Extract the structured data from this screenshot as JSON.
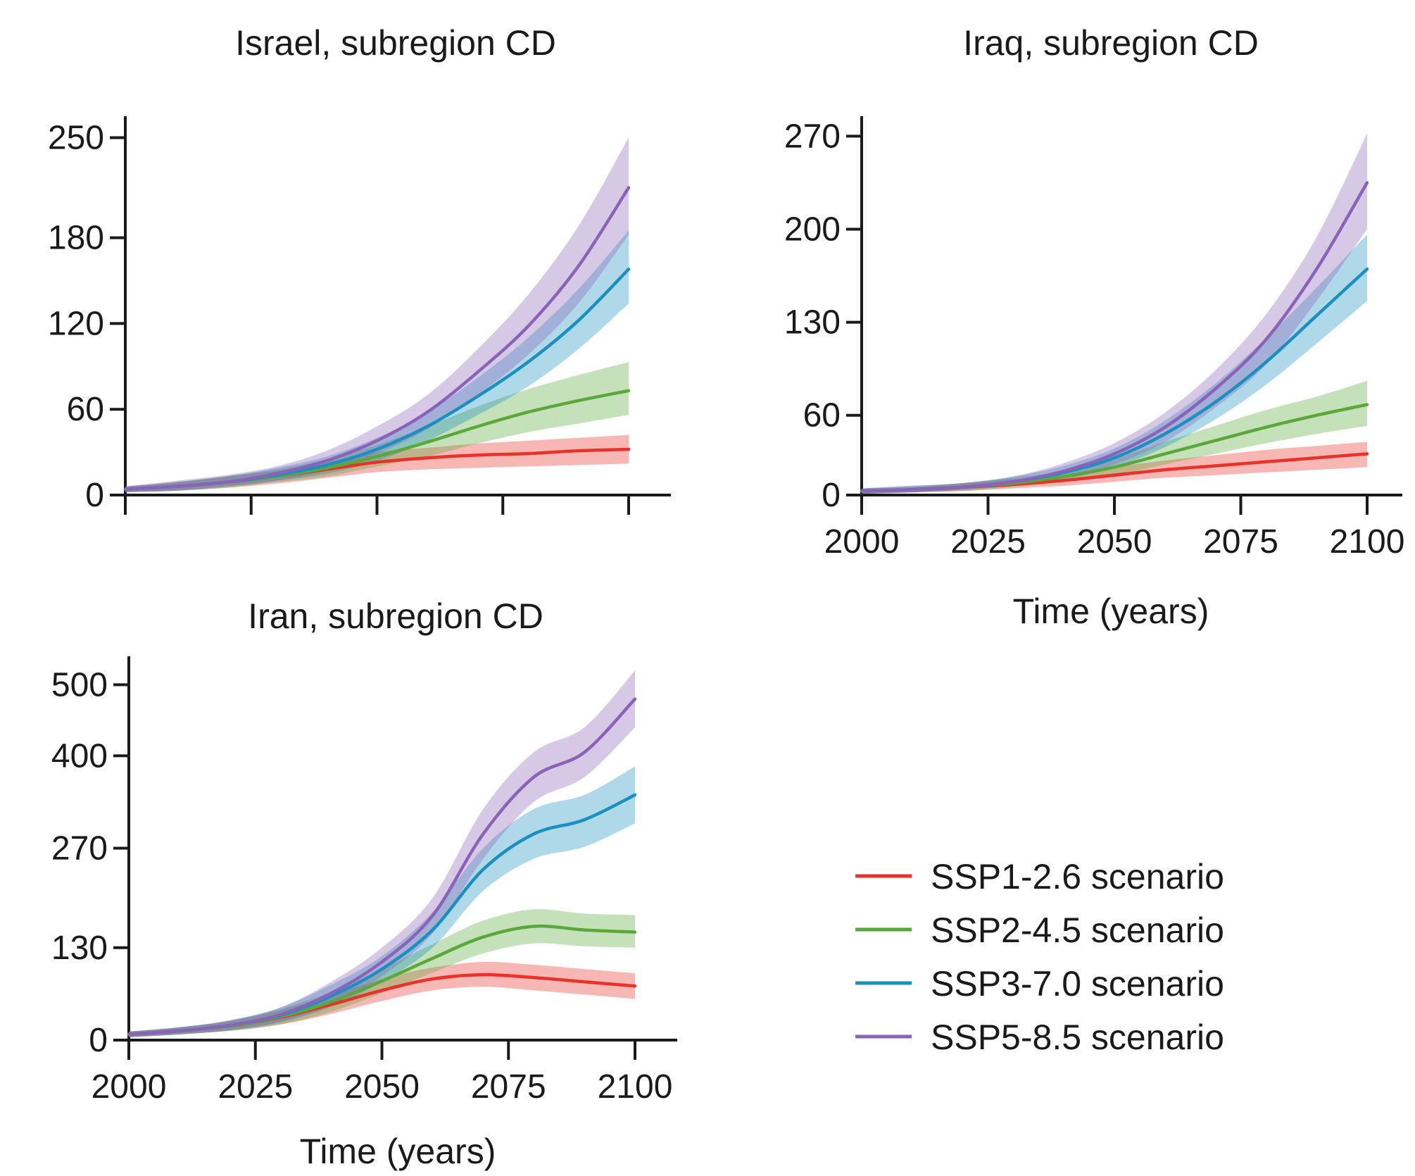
{
  "chart_data": [
    {
      "type": "line",
      "title": "Israel, subregion CD",
      "xlabel": "",
      "ylabel": "",
      "xlim": [
        2000,
        2100
      ],
      "ylim": [
        0,
        265
      ],
      "yticks": [
        "0",
        "60",
        "120",
        "180",
        "250"
      ],
      "xticks": [
        "",
        "",
        "",
        "",
        ""
      ],
      "x": [
        2000,
        2010,
        2020,
        2030,
        2040,
        2050,
        2060,
        2070,
        2080,
        2090,
        2100
      ],
      "series": [
        {
          "name": "SSP1-2.6 scenario",
          "color": "#e8332a",
          "values": [
            4,
            6,
            9,
            13,
            18,
            23,
            26,
            28,
            29,
            31,
            32
          ],
          "lower": [
            2,
            3,
            5,
            8,
            12,
            16,
            18,
            19,
            20,
            21,
            22
          ],
          "upper": [
            6,
            9,
            13,
            17,
            23,
            30,
            33,
            36,
            38,
            40,
            42
          ]
        },
        {
          "name": "SSP2-4.5 scenario",
          "color": "#5aa83a",
          "values": [
            4,
            6,
            9,
            13,
            19,
            27,
            37,
            48,
            58,
            66,
            73
          ],
          "lower": [
            2,
            3,
            5,
            9,
            13,
            20,
            27,
            36,
            44,
            50,
            56
          ],
          "upper": [
            6,
            9,
            13,
            18,
            25,
            35,
            48,
            62,
            74,
            84,
            93
          ]
        },
        {
          "name": "SSP3-7.0 scenario",
          "color": "#1b8fc0",
          "values": [
            4,
            6,
            9,
            14,
            21,
            32,
            48,
            69,
            93,
            122,
            158
          ],
          "lower": [
            2,
            3,
            6,
            10,
            15,
            24,
            38,
            56,
            76,
            102,
            134
          ],
          "upper": [
            6,
            9,
            13,
            19,
            27,
            40,
            58,
            82,
            110,
            144,
            185
          ]
        },
        {
          "name": "SSP5-8.5 scenario",
          "color": "#8a63b8",
          "values": [
            4,
            6,
            9,
            15,
            24,
            38,
            58,
            86,
            118,
            160,
            215
          ],
          "lower": [
            2,
            3,
            6,
            10,
            17,
            29,
            46,
            70,
            98,
            134,
            182
          ],
          "upper": [
            6,
            10,
            14,
            20,
            31,
            48,
            70,
            102,
            140,
            188,
            250
          ]
        }
      ]
    },
    {
      "type": "line",
      "title": "Iraq, subregion CD",
      "xlabel": "Time (years)",
      "ylabel": "",
      "xlim": [
        2000,
        2100
      ],
      "ylim": [
        0,
        285
      ],
      "yticks": [
        "0",
        "60",
        "130",
        "200",
        "270"
      ],
      "xticks": [
        "2000",
        "2025",
        "2050",
        "2075",
        "2100"
      ],
      "x": [
        2000,
        2010,
        2020,
        2030,
        2040,
        2050,
        2060,
        2070,
        2080,
        2090,
        2100
      ],
      "series": [
        {
          "name": "SSP1-2.6 scenario",
          "color": "#e8332a",
          "values": [
            3,
            4,
            6,
            8,
            11,
            15,
            19,
            22,
            25,
            28,
            31
          ],
          "lower": [
            1,
            2,
            3,
            5,
            7,
            10,
            13,
            15,
            17,
            19,
            21
          ],
          "upper": [
            5,
            6,
            9,
            12,
            15,
            21,
            26,
            30,
            34,
            37,
            40
          ]
        },
        {
          "name": "SSP2-4.5 scenario",
          "color": "#5aa83a",
          "values": [
            3,
            4,
            6,
            9,
            14,
            21,
            31,
            41,
            51,
            60,
            68
          ],
          "lower": [
            1,
            2,
            3,
            6,
            10,
            15,
            23,
            31,
            39,
            46,
            52
          ],
          "upper": [
            5,
            6,
            9,
            13,
            18,
            27,
            40,
            52,
            64,
            74,
            86
          ]
        },
        {
          "name": "SSP3-7.0 scenario",
          "color": "#1b8fc0",
          "values": [
            3,
            4,
            6,
            10,
            17,
            28,
            46,
            70,
            100,
            135,
            170
          ],
          "lower": [
            1,
            2,
            4,
            7,
            12,
            21,
            36,
            57,
            83,
            114,
            146
          ],
          "upper": [
            5,
            7,
            9,
            14,
            22,
            35,
            56,
            84,
            118,
            156,
            196
          ]
        },
        {
          "name": "SSP5-8.5 scenario",
          "color": "#8a63b8",
          "values": [
            3,
            4,
            6,
            10,
            18,
            31,
            51,
            80,
            117,
            170,
            235
          ],
          "lower": [
            1,
            2,
            4,
            7,
            13,
            23,
            40,
            66,
            98,
            146,
            200
          ],
          "upper": [
            5,
            7,
            9,
            14,
            24,
            39,
            62,
            94,
            136,
            194,
            272
          ]
        }
      ]
    },
    {
      "type": "line",
      "title": "Iran, subregion CD",
      "xlabel": "Time (years)",
      "ylabel": "",
      "xlim": [
        2000,
        2100
      ],
      "ylim": [
        0,
        540
      ],
      "yticks": [
        "0",
        "130",
        "270",
        "400",
        "500"
      ],
      "xticks": [
        "2000",
        "2025",
        "2050",
        "2075",
        "2100"
      ],
      "x": [
        2000,
        2010,
        2020,
        2030,
        2040,
        2050,
        2060,
        2070,
        2080,
        2090,
        2100
      ],
      "series": [
        {
          "name": "SSP1-2.6 scenario",
          "color": "#e8332a",
          "values": [
            8,
            13,
            20,
            32,
            50,
            70,
            86,
            92,
            88,
            82,
            76
          ],
          "lower": [
            4,
            8,
            13,
            22,
            37,
            55,
            70,
            75,
            70,
            64,
            58
          ],
          "upper": [
            12,
            18,
            27,
            42,
            63,
            86,
            102,
            110,
            106,
            100,
            94
          ]
        },
        {
          "name": "SSP2-4.5 scenario",
          "color": "#5aa83a",
          "values": [
            8,
            13,
            20,
            33,
            54,
            83,
            115,
            145,
            160,
            155,
            152
          ],
          "lower": [
            4,
            8,
            13,
            22,
            40,
            66,
            95,
            122,
            136,
            132,
            130
          ],
          "upper": [
            12,
            18,
            27,
            44,
            68,
            100,
            135,
            168,
            184,
            178,
            176
          ]
        },
        {
          "name": "SSP3-7.0 scenario",
          "color": "#1b8fc0",
          "values": [
            8,
            13,
            21,
            35,
            62,
            100,
            155,
            240,
            290,
            310,
            345
          ],
          "lower": [
            4,
            8,
            14,
            25,
            47,
            82,
            130,
            210,
            255,
            272,
            305
          ],
          "upper": [
            12,
            18,
            28,
            46,
            78,
            118,
            180,
            270,
            325,
            345,
            385
          ]
        },
        {
          "name": "SSP5-8.5 scenario",
          "color": "#8a63b8",
          "values": [
            8,
            13,
            21,
            36,
            66,
            110,
            175,
            290,
            370,
            405,
            480
          ],
          "lower": [
            4,
            8,
            14,
            26,
            50,
            90,
            150,
            255,
            335,
            370,
            440
          ],
          "upper": [
            12,
            18,
            28,
            46,
            82,
            130,
            200,
            325,
            405,
            440,
            520
          ]
        }
      ]
    }
  ],
  "legend": {
    "placement": "bottom-right",
    "items": [
      {
        "label": "SSP1-2.6 scenario",
        "color": "#e8332a"
      },
      {
        "label": "SSP2-4.5 scenario",
        "color": "#5aa83a"
      },
      {
        "label": "SSP3-7.0 scenario",
        "color": "#1b8fc0"
      },
      {
        "label": "SSP5-8.5 scenario",
        "color": "#8a63b8"
      }
    ]
  }
}
